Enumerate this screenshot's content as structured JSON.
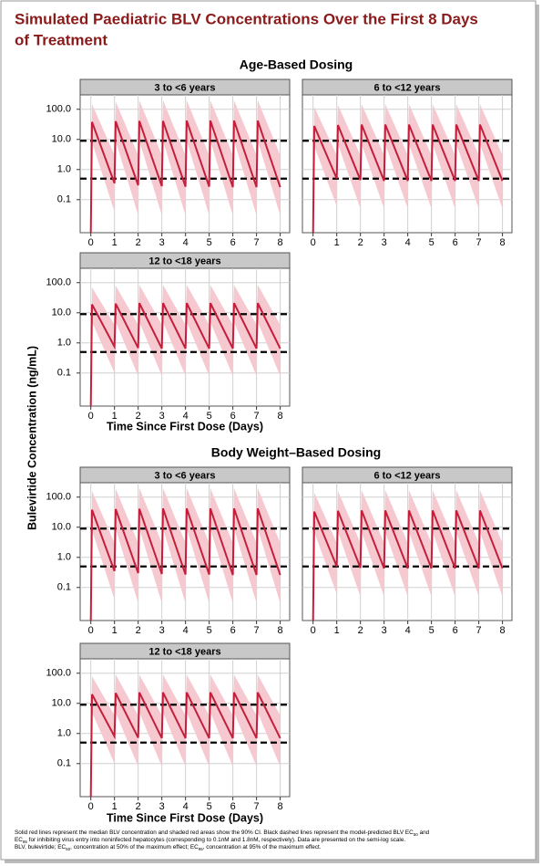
{
  "title": [
    "Simulated Paediatric BLV Concentrations Over the First 8 Days",
    "of Treatment"
  ],
  "y_label": "Bulevirtide Concentration (ng/mL)",
  "sections": [
    {
      "title": "Age-Based Dosing",
      "x_label": "Time Since First Dose (Days)"
    },
    {
      "title": "Body Weight–Based Dosing",
      "x_label": "Time Since First Dose (Days)"
    }
  ],
  "axes": {
    "log_y": true,
    "ylim": [
      0.008,
      300
    ],
    "yticks": [
      0.1,
      {
        "value": 1,
        "label": "1.0"
      },
      {
        "value": 10,
        "label": "10.0"
      },
      {
        "value": 100,
        "label": "100.0"
      }
    ],
    "xlim": [
      -0.45,
      8.4
    ],
    "xticks": [
      0,
      1,
      2,
      3,
      4,
      5,
      6,
      7,
      8
    ],
    "grid": true
  },
  "chart_data": [
    {
      "type": "line",
      "title": "3 to <6 years",
      "x": [
        0,
        0.05,
        1,
        1.05,
        2,
        2.05,
        3,
        3.05,
        4,
        4.05,
        5,
        5.05,
        6,
        6.05,
        7,
        7.05,
        8
      ],
      "series": [
        {
          "color": "#c41e3a",
          "values": [
            0.008,
            38,
            0.35,
            40,
            0.3,
            41,
            0.28,
            41,
            0.27,
            42,
            0.27,
            42,
            0.26,
            42,
            0.26,
            42,
            0.26
          ]
        }
      ],
      "band": {
        "color": "#f6c9d1",
        "upper": [
          0.01,
          150,
          3,
          180,
          3,
          200,
          3,
          200,
          3,
          200,
          3,
          200,
          3,
          200,
          3,
          200,
          3
        ],
        "lower": [
          0.008,
          8,
          0.04,
          9,
          0.03,
          9,
          0.03,
          9,
          0.03,
          9,
          0.03,
          9,
          0.03,
          9,
          0.03,
          9,
          0.03
        ]
      },
      "reference_lines": [
        {
          "value": 9,
          "color": "#000000"
        },
        {
          "value": 0.5,
          "color": "#000000"
        }
      ]
    },
    {
      "type": "line",
      "title": "6 to <12 years",
      "x": [
        0,
        0.05,
        1,
        1.05,
        2,
        2.05,
        3,
        3.05,
        4,
        4.05,
        5,
        5.05,
        6,
        6.05,
        7,
        7.05,
        8
      ],
      "series": [
        {
          "color": "#c41e3a",
          "values": [
            0.008,
            28,
            0.5,
            30,
            0.45,
            31,
            0.42,
            31,
            0.42,
            31,
            0.42,
            31,
            0.42,
            31,
            0.42,
            31,
            0.42
          ]
        }
      ],
      "band": {
        "color": "#f6c9d1",
        "upper": [
          0.01,
          120,
          3,
          140,
          3,
          150,
          3,
          150,
          3,
          150,
          3,
          150,
          3,
          150,
          3,
          150,
          3
        ],
        "lower": [
          0.008,
          6,
          0.06,
          7,
          0.05,
          7,
          0.05,
          7,
          0.05,
          7,
          0.05,
          7,
          0.05,
          7,
          0.05,
          7,
          0.05
        ]
      },
      "reference_lines": [
        {
          "value": 9,
          "color": "#000000"
        },
        {
          "value": 0.5,
          "color": "#000000"
        }
      ]
    },
    {
      "type": "line",
      "title": "12 to <18 years",
      "x": [
        0,
        0.05,
        1,
        1.05,
        2,
        2.05,
        3,
        3.05,
        4,
        4.05,
        5,
        5.05,
        6,
        6.05,
        7,
        7.05,
        8
      ],
      "series": [
        {
          "color": "#c41e3a",
          "values": [
            0.008,
            19,
            0.75,
            20,
            0.68,
            21,
            0.65,
            21,
            0.65,
            21,
            0.65,
            21,
            0.65,
            21,
            0.65,
            21,
            0.65
          ]
        }
      ],
      "band": {
        "color": "#f6c9d1",
        "upper": [
          0.01,
          70,
          4,
          80,
          4,
          85,
          4,
          85,
          4,
          85,
          4,
          85,
          4,
          85,
          4,
          85,
          4
        ],
        "lower": [
          0.008,
          5,
          0.1,
          5,
          0.08,
          5,
          0.08,
          5,
          0.08,
          5,
          0.08,
          5,
          0.08,
          5,
          0.08,
          5,
          0.08
        ]
      },
      "reference_lines": [
        {
          "value": 9,
          "color": "#000000"
        },
        {
          "value": 0.5,
          "color": "#000000"
        }
      ]
    },
    {
      "type": "line",
      "title": "3 to <6 years",
      "x": [
        0,
        0.05,
        1,
        1.05,
        2,
        2.05,
        3,
        3.05,
        4,
        4.05,
        5,
        5.05,
        6,
        6.05,
        7,
        7.05,
        8
      ],
      "series": [
        {
          "color": "#c41e3a",
          "values": [
            0.008,
            38,
            0.35,
            40,
            0.3,
            41,
            0.28,
            42,
            0.27,
            42,
            0.27,
            42,
            0.26,
            42,
            0.26,
            42,
            0.26
          ]
        }
      ],
      "band": {
        "color": "#f6c9d1",
        "upper": [
          0.01,
          160,
          3,
          190,
          3,
          200,
          3,
          200,
          3,
          200,
          3,
          200,
          3,
          200,
          3,
          200,
          3
        ],
        "lower": [
          0.008,
          8,
          0.04,
          9,
          0.03,
          9,
          0.03,
          9,
          0.03,
          9,
          0.03,
          9,
          0.03,
          9,
          0.03,
          9,
          0.03
        ]
      },
      "reference_lines": [
        {
          "value": 9,
          "color": "#000000"
        },
        {
          "value": 0.5,
          "color": "#000000"
        }
      ]
    },
    {
      "type": "line",
      "title": "6 to <12 years",
      "x": [
        0,
        0.05,
        1,
        1.05,
        2,
        2.05,
        3,
        3.05,
        4,
        4.05,
        5,
        5.05,
        6,
        6.05,
        7,
        7.05,
        8
      ],
      "series": [
        {
          "color": "#c41e3a",
          "values": [
            0.008,
            33,
            0.5,
            35,
            0.45,
            36,
            0.43,
            36,
            0.43,
            36,
            0.43,
            36,
            0.43,
            36,
            0.43,
            36,
            0.43
          ]
        }
      ],
      "band": {
        "color": "#f6c9d1",
        "upper": [
          0.01,
          140,
          3,
          160,
          3,
          170,
          3,
          170,
          3,
          170,
          3,
          170,
          3,
          170,
          3,
          170,
          3
        ],
        "lower": [
          0.008,
          7,
          0.06,
          7,
          0.05,
          7,
          0.05,
          7,
          0.05,
          7,
          0.05,
          7,
          0.05,
          7,
          0.05,
          7,
          0.05
        ]
      },
      "reference_lines": [
        {
          "value": 9,
          "color": "#000000"
        },
        {
          "value": 0.5,
          "color": "#000000"
        }
      ]
    },
    {
      "type": "line",
      "title": "12 to <18 years",
      "x": [
        0,
        0.05,
        1,
        1.05,
        2,
        2.05,
        3,
        3.05,
        4,
        4.05,
        5,
        5.05,
        6,
        6.05,
        7,
        7.05,
        8
      ],
      "series": [
        {
          "color": "#c41e3a",
          "values": [
            0.008,
            20,
            0.8,
            22,
            0.72,
            23,
            0.7,
            23,
            0.7,
            23,
            0.7,
            23,
            0.7,
            23,
            0.7,
            23,
            0.7
          ]
        }
      ],
      "band": {
        "color": "#f6c9d1",
        "upper": [
          0.01,
          80,
          4,
          90,
          4,
          90,
          4,
          90,
          4,
          90,
          4,
          90,
          4,
          90,
          4,
          90,
          4
        ],
        "lower": [
          0.008,
          5,
          0.1,
          5,
          0.08,
          5,
          0.08,
          5,
          0.08,
          5,
          0.08,
          5,
          0.08,
          5,
          0.08,
          5,
          0.08
        ]
      },
      "reference_lines": [
        {
          "value": 9,
          "color": "#000000"
        },
        {
          "value": 0.5,
          "color": "#000000"
        }
      ]
    }
  ],
  "footnote": [
    [
      {
        "text": "Solid red lines represent the median BLV concentration and shaded red areas show the 90% CI. Black dashed lines represent the model-predicted BLV EC"
      },
      {
        "sub": "50"
      },
      {
        "text": " and"
      }
    ],
    [
      {
        "text": "EC"
      },
      {
        "sub": "95"
      },
      {
        "text": " for inhibiting virus entry into noninfected hepatocytes (corresponding to 0.1nM and 1.8nM, respectively). Data are presented on the semi-log scale."
      }
    ],
    [
      {
        "text": "BLV, bulevirtide; EC"
      },
      {
        "sub": "50"
      },
      {
        "text": ", concentration at 50% of the maximum effect; EC"
      },
      {
        "sub": "95"
      },
      {
        "text": ", concentration at 95% of the maximum effect."
      }
    ]
  ]
}
